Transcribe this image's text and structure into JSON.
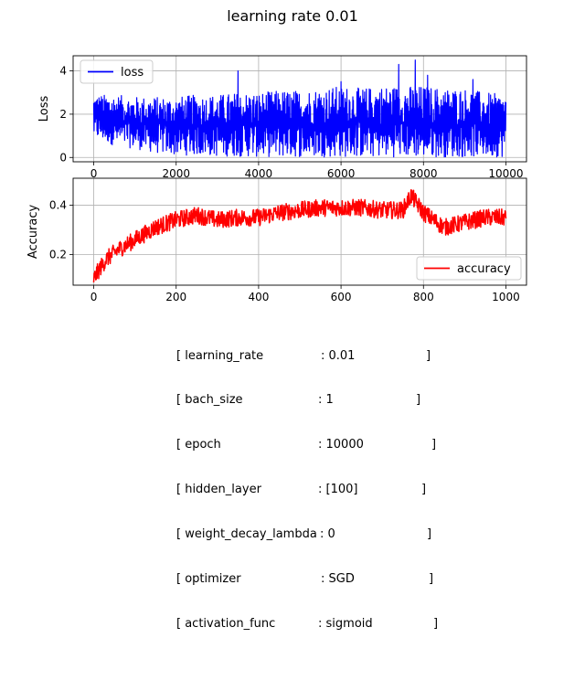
{
  "figure": {
    "title": "learning rate 0.01"
  },
  "chart_data": [
    {
      "type": "line",
      "ylabel": "Loss",
      "xlabel": "",
      "xlim": [
        -500,
        10500
      ],
      "ylim": [
        -0.2,
        4.7
      ],
      "x_ticks": [
        0,
        2000,
        4000,
        6000,
        8000,
        10000
      ],
      "y_ticks": [
        0,
        2,
        4
      ],
      "x_tick_labels": [
        "0",
        "2000",
        "4000",
        "6000",
        "8000",
        "10000"
      ],
      "y_tick_labels": [
        "0",
        "2",
        "4"
      ],
      "grid": true,
      "legend": "upper left",
      "series": [
        {
          "name": "loss",
          "color": "#0000ff",
          "x_range": [
            0,
            10000
          ],
          "envelope_x": [
            0,
            500,
            1000,
            1500,
            2000,
            2500,
            3000,
            3500,
            4000,
            4500,
            5000,
            5500,
            6000,
            6500,
            7000,
            7500,
            8000,
            8500,
            9000,
            9500,
            10000
          ],
          "envelope_low": [
            0.9,
            0.55,
            0.4,
            0.2,
            0.1,
            0.1,
            0.05,
            0.05,
            0.02,
            0.02,
            0.02,
            0.02,
            0.02,
            0.02,
            0.02,
            0.02,
            0.02,
            0.02,
            0.02,
            0.02,
            0.02
          ],
          "envelope_high": [
            2.9,
            2.9,
            2.8,
            2.8,
            2.8,
            2.9,
            2.9,
            3.0,
            3.0,
            3.1,
            3.1,
            3.2,
            3.3,
            3.2,
            3.3,
            3.3,
            3.3,
            3.2,
            3.2,
            3.0,
            2.9
          ],
          "spikes": [
            {
              "x": 3500,
              "y": 4.0
            },
            {
              "x": 7400,
              "y": 4.3
            },
            {
              "x": 7800,
              "y": 4.5
            },
            {
              "x": 8100,
              "y": 3.8
            },
            {
              "x": 9200,
              "y": 3.6
            },
            {
              "x": 6000,
              "y": 3.5
            }
          ]
        }
      ]
    },
    {
      "type": "line",
      "ylabel": "Accuracy",
      "xlabel": "",
      "xlim": [
        -50,
        1050
      ],
      "ylim": [
        0.075,
        0.51
      ],
      "x_ticks": [
        0,
        200,
        400,
        600,
        800,
        1000
      ],
      "y_ticks": [
        0.2,
        0.4
      ],
      "x_tick_labels": [
        "0",
        "200",
        "400",
        "600",
        "800",
        "1000"
      ],
      "y_tick_labels": [
        "0.2",
        "0.4"
      ],
      "grid": true,
      "legend": "lower right",
      "series": [
        {
          "name": "accuracy",
          "color": "#ff0000",
          "trend_x": [
            0,
            10,
            30,
            60,
            100,
            150,
            200,
            250,
            300,
            350,
            400,
            450,
            500,
            550,
            600,
            650,
            700,
            750,
            770,
            800,
            850,
            900,
            950,
            1000
          ],
          "trend_y": [
            0.1,
            0.13,
            0.18,
            0.22,
            0.26,
            0.31,
            0.34,
            0.36,
            0.34,
            0.35,
            0.35,
            0.37,
            0.38,
            0.39,
            0.39,
            0.39,
            0.38,
            0.38,
            0.44,
            0.37,
            0.31,
            0.33,
            0.35,
            0.35
          ],
          "noise_amplitude": 0.035
        }
      ]
    }
  ],
  "params": [
    {
      "key": "[ learning_rate",
      "value": ": 0.01",
      "close": "]"
    },
    {
      "key": "[ bach_size",
      "value": ": 1",
      "close": "]"
    },
    {
      "key": "[ epoch",
      "value": ": 10000",
      "close": "]"
    },
    {
      "key": "[ hidden_layer",
      "value": ": [100]",
      "close": "]"
    },
    {
      "key": "[ weight_decay_lambda",
      "value": ": 0",
      "close": "]"
    },
    {
      "key": "[ optimizer",
      "value": ": SGD",
      "close": "]"
    },
    {
      "key": "[ activation_func",
      "value": ": sigmoid",
      "close": "]"
    }
  ]
}
